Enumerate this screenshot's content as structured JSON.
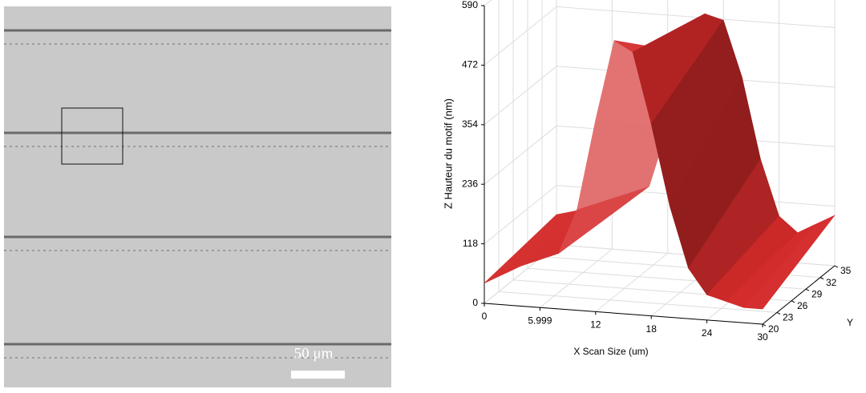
{
  "image": {
    "scale_bar": "50 μm"
  },
  "chart_data": {
    "type": "surface3d",
    "zlabel": "Z Hauteur du motif (nm)",
    "xlabel": "X Scan Size (um)",
    "ylabel": "Y",
    "zlim": [
      0,
      590
    ],
    "zticks": [
      0,
      118,
      236,
      354,
      472,
      590
    ],
    "xlim": [
      0,
      30
    ],
    "xticks": [
      0,
      5.999,
      12,
      18,
      24,
      30
    ],
    "ylim": [
      20,
      35
    ],
    "yticks": [
      20,
      23,
      26,
      29,
      32,
      35
    ],
    "grid": true,
    "color": "#d42a2a",
    "x": [
      0,
      2,
      4,
      6,
      8,
      10,
      12,
      14,
      16,
      18,
      20,
      22,
      24,
      26,
      28,
      30
    ],
    "profiles": [
      {
        "y": 20,
        "values": [
          40,
          60,
          80,
          95,
          110,
          200,
          380,
          540,
          520,
          380,
          220,
          100,
          50,
          40,
          30,
          30
        ]
      },
      {
        "y": 35,
        "values": [
          60,
          70,
          80,
          90,
          100,
          130,
          250,
          400,
          480,
          470,
          360,
          200,
          90,
          60,
          80,
          100
        ]
      }
    ]
  }
}
